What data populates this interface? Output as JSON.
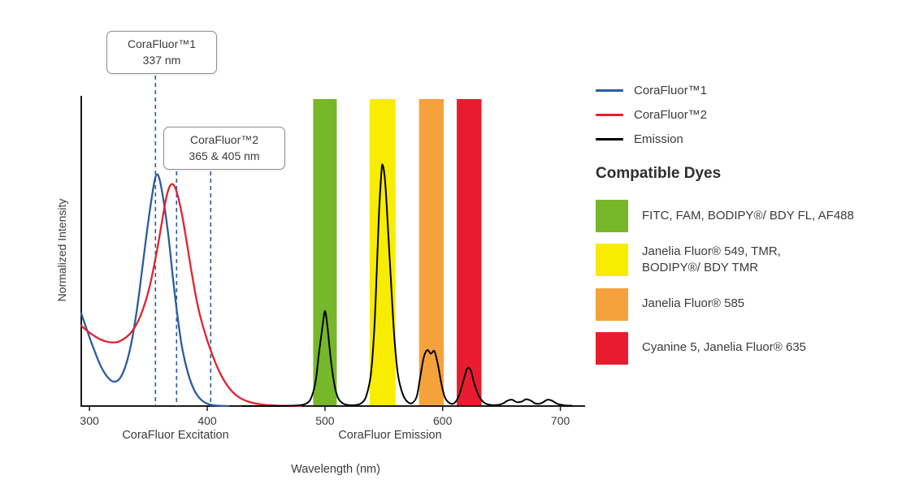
{
  "chart_data": {
    "type": "line",
    "title": "",
    "xlabel": "Wavelength (nm)",
    "ylabel": "Normalized Intensity",
    "x_ticks": [
      300,
      400,
      500,
      600,
      700
    ],
    "x_range_nm": [
      293,
      721
    ],
    "ylim": [
      0,
      1
    ],
    "grid": false,
    "legend_position": "right",
    "x_section_labels": [
      "CoraFluor Excitation",
      "CoraFluor Emission"
    ],
    "series": [
      {
        "name": "CoraFluor™1",
        "color": "#2a5d9e",
        "points": [
          [
            293,
            0.38
          ],
          [
            298,
            0.31
          ],
          [
            304,
            0.23
          ],
          [
            310,
            0.16
          ],
          [
            316,
            0.115
          ],
          [
            321,
            0.1
          ],
          [
            326,
            0.115
          ],
          [
            331,
            0.17
          ],
          [
            336,
            0.27
          ],
          [
            341,
            0.42
          ],
          [
            346,
            0.61
          ],
          [
            350,
            0.76
          ],
          [
            354,
            0.89
          ],
          [
            356,
            0.94
          ],
          [
            358,
            0.95
          ],
          [
            360,
            0.92
          ],
          [
            363,
            0.84
          ],
          [
            367,
            0.7
          ],
          [
            371,
            0.52
          ],
          [
            375,
            0.36
          ],
          [
            379,
            0.23
          ],
          [
            384,
            0.13
          ],
          [
            389,
            0.065
          ],
          [
            394,
            0.03
          ],
          [
            399,
            0.012
          ],
          [
            404,
            0.004
          ],
          [
            410,
            0.001
          ],
          [
            418,
            0.0
          ]
        ]
      },
      {
        "name": "CoraFluor™2",
        "color": "#e32330",
        "points": [
          [
            293,
            0.33
          ],
          [
            299,
            0.305
          ],
          [
            305,
            0.285
          ],
          [
            311,
            0.27
          ],
          [
            317,
            0.262
          ],
          [
            323,
            0.262
          ],
          [
            329,
            0.275
          ],
          [
            335,
            0.3
          ],
          [
            341,
            0.345
          ],
          [
            347,
            0.42
          ],
          [
            352,
            0.51
          ],
          [
            357,
            0.63
          ],
          [
            361,
            0.74
          ],
          [
            365,
            0.85
          ],
          [
            368,
            0.9
          ],
          [
            371,
            0.91
          ],
          [
            374,
            0.88
          ],
          [
            378,
            0.8
          ],
          [
            382,
            0.69
          ],
          [
            386,
            0.57
          ],
          [
            390,
            0.46
          ],
          [
            394,
            0.37
          ],
          [
            399,
            0.285
          ],
          [
            404,
            0.215
          ],
          [
            409,
            0.155
          ],
          [
            414,
            0.107
          ],
          [
            420,
            0.066
          ],
          [
            427,
            0.036
          ],
          [
            435,
            0.018
          ],
          [
            444,
            0.008
          ],
          [
            455,
            0.003
          ],
          [
            468,
            0.001
          ],
          [
            480,
            0.0
          ]
        ]
      },
      {
        "name": "Emission",
        "color": "#000000",
        "points": [
          [
            430,
            0.0
          ],
          [
            460,
            0.0
          ],
          [
            475,
            0.002
          ],
          [
            483,
            0.008
          ],
          [
            488,
            0.03
          ],
          [
            492,
            0.1
          ],
          [
            495,
            0.22
          ],
          [
            498,
            0.33
          ],
          [
            500,
            0.39
          ],
          [
            502,
            0.33
          ],
          [
            505,
            0.19
          ],
          [
            508,
            0.09
          ],
          [
            511,
            0.035
          ],
          [
            515,
            0.012
          ],
          [
            520,
            0.004
          ],
          [
            526,
            0.004
          ],
          [
            531,
            0.012
          ],
          [
            535,
            0.04
          ],
          [
            539,
            0.13
          ],
          [
            542,
            0.32
          ],
          [
            544,
            0.55
          ],
          [
            546,
            0.8
          ],
          [
            548,
            0.96
          ],
          [
            549,
            0.99
          ],
          [
            551,
            0.93
          ],
          [
            553,
            0.78
          ],
          [
            556,
            0.52
          ],
          [
            559,
            0.28
          ],
          [
            562,
            0.13
          ],
          [
            566,
            0.05
          ],
          [
            570,
            0.018
          ],
          [
            574,
            0.012
          ],
          [
            578,
            0.04
          ],
          [
            581,
            0.12
          ],
          [
            584,
            0.2
          ],
          [
            587,
            0.23
          ],
          [
            590,
            0.215
          ],
          [
            593,
            0.225
          ],
          [
            596,
            0.17
          ],
          [
            599,
            0.09
          ],
          [
            602,
            0.035
          ],
          [
            606,
            0.012
          ],
          [
            610,
            0.012
          ],
          [
            614,
            0.045
          ],
          [
            618,
            0.11
          ],
          [
            621,
            0.155
          ],
          [
            624,
            0.145
          ],
          [
            627,
            0.09
          ],
          [
            631,
            0.04
          ],
          [
            635,
            0.015
          ],
          [
            640,
            0.005
          ],
          [
            646,
            0.004
          ],
          [
            651,
            0.01
          ],
          [
            655,
            0.022
          ],
          [
            659,
            0.026
          ],
          [
            663,
            0.016
          ],
          [
            667,
            0.018
          ],
          [
            671,
            0.028
          ],
          [
            675,
            0.022
          ],
          [
            679,
            0.01
          ],
          [
            684,
            0.012
          ],
          [
            689,
            0.026
          ],
          [
            693,
            0.022
          ],
          [
            697,
            0.01
          ],
          [
            702,
            0.004
          ],
          [
            710,
            0.001
          ]
        ]
      }
    ],
    "bands": [
      {
        "dye": "FITC, FAM, BODIPY®/ BDY FL, AF488",
        "color": "#76b82a",
        "nm": [
          490,
          510
        ]
      },
      {
        "dye": "Janelia Fluor® 549, TMR, BODIPY®/ BDY TMR",
        "color": "#f8ec00",
        "nm": [
          538,
          560
        ]
      },
      {
        "dye": "Janelia Fluor® 585",
        "color": "#f5a23c",
        "nm": [
          580,
          601
        ]
      },
      {
        "dye": "Cyanine 5, Janelia Fluor® 635",
        "color": "#e81c2e",
        "nm": [
          612,
          633
        ]
      }
    ],
    "annotations": [
      {
        "title": "CoraFluor™1",
        "value": "337 nm",
        "lines_nm": [
          356
        ]
      },
      {
        "title": "CoraFluor™2",
        "value": "365 & 405 nm",
        "lines_nm": [
          374,
          403
        ]
      }
    ],
    "marker_line_color": "#2a5d9e"
  },
  "legend": {
    "series": [
      {
        "label": "CoraFluor™1",
        "color": "#2a5d9e"
      },
      {
        "label": "CoraFluor™2",
        "color": "#e32330"
      },
      {
        "label": "Emission",
        "color": "#000000"
      }
    ]
  },
  "dyes": {
    "heading": "Compatible Dyes",
    "items": [
      {
        "label": "FITC, FAM, BODIPY®/ BDY FL, AF488",
        "color": "#76b82a"
      },
      {
        "label": "Janelia Fluor® 549, TMR,\nBODIPY®/ BDY TMR",
        "color": "#f8ec00"
      },
      {
        "label": "Janelia Fluor® 585",
        "color": "#f5a23c"
      },
      {
        "label": "Cyanine 5, Janelia Fluor® 635",
        "color": "#e81c2e"
      }
    ]
  }
}
